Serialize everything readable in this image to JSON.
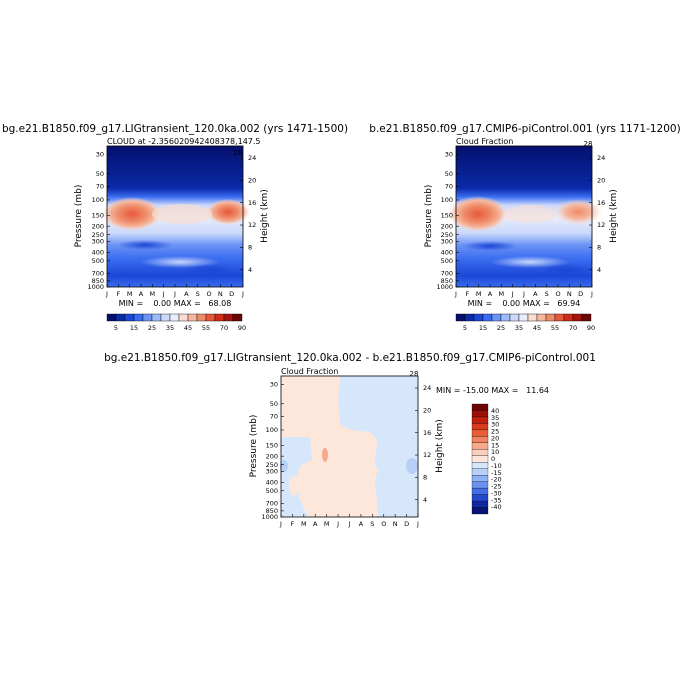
{
  "panel_titles": {
    "left": "bg.e21.B1850.f09_g17.LIGtransient_120.0ka.002 (yrs 1471-1500)",
    "right": "b.e21.B1850.f09_g17.CMIP6-piControl.001 (yrs 1171-1200)",
    "diff": "bg.e21.B1850.f09_g17.LIGtransient_120.0ka.002 - b.e21.B1850.f09_g17.CMIP6-piControl.001"
  },
  "chart_data": [
    {
      "type": "heatmap",
      "id": "left",
      "title": "CLOUD at -2.356020942408378,147.5",
      "ylabel": "Pressure (mb)",
      "ylabel_right": "Height (km)",
      "x_ticks": [
        "J",
        "F",
        "M",
        "A",
        "M",
        "J",
        "J",
        "A",
        "S",
        "O",
        "N",
        "D",
        "J"
      ],
      "y_ticks": [
        "30",
        "50",
        "70",
        "100",
        "150",
        "200",
        "250",
        "300",
        "400",
        "500",
        "700",
        "850",
        "1000"
      ],
      "height_ticks": [
        "24",
        "20",
        "16",
        "12",
        "8",
        "4"
      ],
      "corner_label": "28",
      "stats": "MIN =    0.00 MAX =   68.08",
      "min": 0.0,
      "max": 68.08,
      "colorbar_labels": [
        "5",
        "15",
        "25",
        "35",
        "45",
        "55",
        "70",
        "90"
      ]
    },
    {
      "type": "heatmap",
      "id": "right",
      "title": "Cloud Fraction",
      "ylabel": "Pressure (mb)",
      "ylabel_right": "Height (km)",
      "x_ticks": [
        "J",
        "F",
        "M",
        "A",
        "M",
        "J",
        "J",
        "A",
        "S",
        "O",
        "N",
        "D",
        "J"
      ],
      "y_ticks": [
        "30",
        "50",
        "70",
        "100",
        "150",
        "200",
        "250",
        "300",
        "400",
        "500",
        "700",
        "850",
        "1000"
      ],
      "height_ticks": [
        "24",
        "20",
        "16",
        "12",
        "8",
        "4"
      ],
      "corner_label": "28",
      "stats": "MIN =    0.00 MAX =   69.94",
      "min": 0.0,
      "max": 69.94,
      "colorbar_labels": [
        "5",
        "15",
        "25",
        "35",
        "45",
        "55",
        "70",
        "90"
      ]
    },
    {
      "type": "heatmap",
      "id": "diff",
      "title": "Cloud Fraction",
      "ylabel": "Pressure (mb)",
      "ylabel_right": "Height (km)",
      "x_ticks": [
        "J",
        "F",
        "M",
        "A",
        "M",
        "J",
        "J",
        "A",
        "S",
        "O",
        "N",
        "D",
        "J"
      ],
      "y_ticks": [
        "30",
        "50",
        "70",
        "100",
        "150",
        "200",
        "250",
        "300",
        "400",
        "500",
        "700",
        "850",
        "1000"
      ],
      "height_ticks": [
        "24",
        "20",
        "16",
        "12",
        "8",
        "4"
      ],
      "corner_label": "28",
      "stats": "MIN = -15.00 MAX =   11.64",
      "min": -15.0,
      "max": 11.64,
      "colorbar_labels": [
        "40",
        "35",
        "30",
        "25",
        "20",
        "15",
        "10",
        "0",
        "-10",
        "-15",
        "-20",
        "-25",
        "-30",
        "-35",
        "-40"
      ]
    }
  ],
  "colors": {
    "seq": [
      "#05106e",
      "#0a2aa8",
      "#1c46d6",
      "#3a6cf0",
      "#6d94f5",
      "#9fbaf8",
      "#c9d8fb",
      "#eaeefc",
      "#f8ddd0",
      "#f5b79e",
      "#ef8a67",
      "#e6583a",
      "#cf2d1a",
      "#a4130d",
      "#6c0606"
    ],
    "div": [
      "#6c0606",
      "#9a1009",
      "#c1200f",
      "#db3a1c",
      "#ea5c36",
      "#f2835e",
      "#f6a98b",
      "#fbd0bc",
      "#fde7db",
      "#d6e6fb",
      "#b6d0f8",
      "#8fb0f4",
      "#6a91ee",
      "#446ee3",
      "#2449cc",
      "#1128a3",
      "#061576"
    ]
  }
}
